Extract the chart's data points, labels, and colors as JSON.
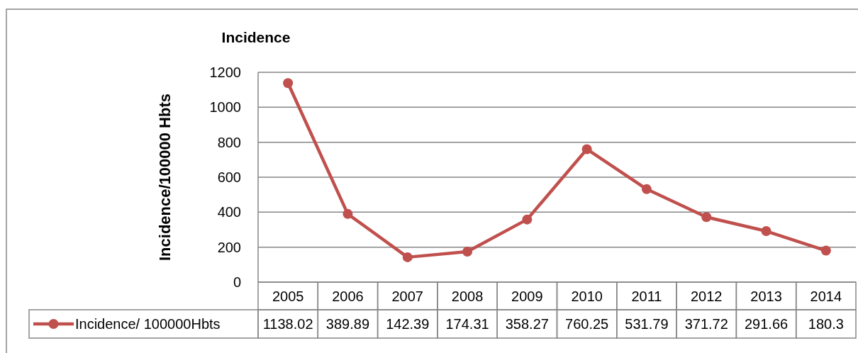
{
  "chart_data": {
    "type": "line",
    "title": "Incidence",
    "ylabel": "Incidence/100000 Hbts",
    "categories": [
      "2005",
      "2006",
      "2007",
      "2008",
      "2009",
      "2010",
      "2011",
      "2012",
      "2013",
      "2014"
    ],
    "series": [
      {
        "name": "Incidence/ 100000Hbts",
        "color": "#c0504d",
        "values": [
          1138.02,
          389.89,
          142.39,
          174.31,
          358.27,
          760.25,
          531.79,
          371.72,
          291.66,
          180.3
        ]
      }
    ],
    "ylim": [
      0,
      1200
    ],
    "yticks": [
      0,
      200,
      400,
      600,
      800,
      1000,
      1200
    ],
    "grid": "y",
    "legend": "bottom",
    "marker": "circle",
    "data_labels": true
  }
}
